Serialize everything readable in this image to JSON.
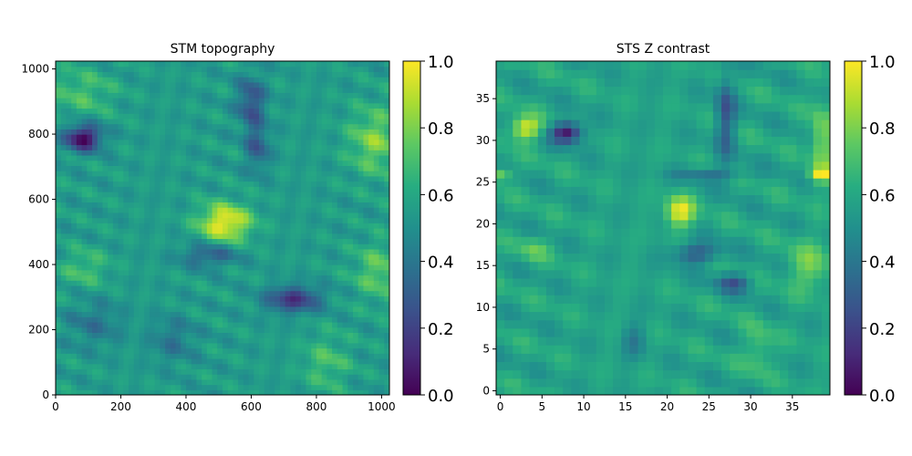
{
  "chart_data": [
    {
      "type": "heatmap",
      "title": "STM topography",
      "x_ticks": [
        0,
        200,
        400,
        600,
        800,
        1000
      ],
      "y_ticks": [
        0,
        200,
        400,
        600,
        800,
        1000
      ],
      "xlim": [
        0,
        1024
      ],
      "ylim": [
        0,
        1024
      ],
      "grid_size": 64,
      "colormap": "viridis",
      "grid": false,
      "colorbar": {
        "ticks": [
          "0.0",
          "0.2",
          "0.4",
          "0.6",
          "0.8",
          "1.0"
        ],
        "range": [
          0,
          1
        ],
        "placement": "right"
      },
      "base_value": 0.55,
      "features": [
        {
          "x": 85,
          "y": 790,
          "sx": 40,
          "sy": 28,
          "value": -0.55
        },
        {
          "x": 520,
          "y": 530,
          "sx": 55,
          "sy": 40,
          "value": 0.45
        },
        {
          "x": 980,
          "y": 780,
          "sx": 55,
          "sy": 70,
          "value": 0.25
        },
        {
          "x": 730,
          "y": 295,
          "sx": 60,
          "sy": 28,
          "value": -0.4
        },
        {
          "x": 600,
          "y": 900,
          "sx": 30,
          "sy": 55,
          "value": -0.3
        },
        {
          "x": 620,
          "y": 760,
          "sx": 25,
          "sy": 50,
          "value": -0.25
        },
        {
          "x": 470,
          "y": 430,
          "sx": 60,
          "sy": 25,
          "value": -0.25
        },
        {
          "x": 990,
          "y": 380,
          "sx": 50,
          "sy": 60,
          "value": 0.2
        },
        {
          "x": 90,
          "y": 390,
          "sx": 50,
          "sy": 40,
          "value": 0.15
        },
        {
          "x": 80,
          "y": 930,
          "sx": 70,
          "sy": 50,
          "value": 0.15
        },
        {
          "x": 830,
          "y": 100,
          "sx": 50,
          "sy": 60,
          "value": 0.15
        },
        {
          "x": 120,
          "y": 220,
          "sx": 60,
          "sy": 50,
          "value": -0.15
        },
        {
          "x": 360,
          "y": 170,
          "sx": 50,
          "sy": 50,
          "value": -0.15
        }
      ]
    },
    {
      "type": "heatmap",
      "title": "STS Z contrast",
      "x_ticks": [
        0,
        5,
        10,
        15,
        20,
        25,
        30,
        35
      ],
      "y_ticks": [
        0,
        5,
        10,
        15,
        20,
        25,
        30,
        35
      ],
      "xlim": [
        -0.5,
        39.5
      ],
      "ylim": [
        -0.5,
        39.5
      ],
      "grid_size": 40,
      "colormap": "viridis",
      "grid": false,
      "colorbar": {
        "ticks": [
          "0.0",
          "0.2",
          "0.4",
          "0.6",
          "0.8",
          "1.0"
        ],
        "range": [
          0,
          1
        ],
        "placement": "right"
      },
      "base_value": 0.58,
      "features": [
        {
          "x": 3,
          "y": 31.5,
          "sx": 1.3,
          "sy": 1.0,
          "value": 0.4
        },
        {
          "x": 8,
          "y": 31,
          "sx": 1.3,
          "sy": 0.9,
          "value": -0.55
        },
        {
          "x": 21.5,
          "y": 21.5,
          "sx": 1.2,
          "sy": 1.3,
          "value": 0.4
        },
        {
          "x": 27,
          "y": 33,
          "sx": 0.8,
          "sy": 3.5,
          "value": -0.3
        },
        {
          "x": 23.5,
          "y": 16.5,
          "sx": 2.0,
          "sy": 0.9,
          "value": -0.3
        },
        {
          "x": 28,
          "y": 13,
          "sx": 1.5,
          "sy": 0.8,
          "value": -0.3
        },
        {
          "x": 38.5,
          "y": 30,
          "sx": 0.9,
          "sy": 3.0,
          "value": 0.25
        },
        {
          "x": 38.5,
          "y": 26,
          "sx": 1.0,
          "sy": 0.6,
          "value": 0.35
        },
        {
          "x": 25,
          "y": 26,
          "sx": 3.0,
          "sy": 0.6,
          "value": -0.2
        },
        {
          "x": 37,
          "y": 15,
          "sx": 1.8,
          "sy": 2.0,
          "value": 0.2
        },
        {
          "x": 4,
          "y": 17,
          "sx": 1.2,
          "sy": 1.0,
          "value": 0.15
        },
        {
          "x": 31,
          "y": 5,
          "sx": 1.2,
          "sy": 2.0,
          "value": 0.15
        },
        {
          "x": 16,
          "y": 6,
          "sx": 1.0,
          "sy": 1.5,
          "value": -0.15
        },
        {
          "x": 0,
          "y": 26,
          "sx": 1.0,
          "sy": 0.6,
          "value": 0.25
        }
      ]
    }
  ]
}
